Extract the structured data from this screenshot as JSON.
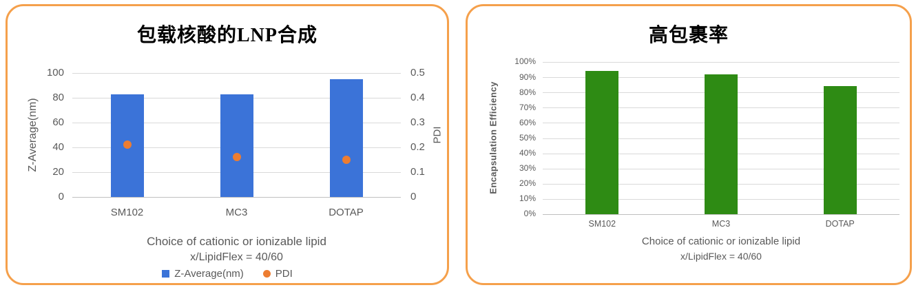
{
  "colors": {
    "panel_border": "#F5A04B",
    "bar_blue": "#3B73D8",
    "marker_orange": "#ED7D31",
    "bar_green": "#2E8B14",
    "gridline": "#D9D9D9",
    "axis_text": "#595959"
  },
  "left_chart": {
    "title": "包载核酸的LNP合成",
    "y_left_title": "Z-Average(nm)",
    "y_right_title": "PDI",
    "xlabel_line1": "Choice of cationic or ionizable lipid",
    "xlabel_line2": "x/LipidFlex = 40/60",
    "legend": [
      {
        "label": "Z-Average(nm)",
        "marker": "square",
        "color": "#3B73D8"
      },
      {
        "label": "PDI",
        "marker": "circle",
        "color": "#ED7D31"
      }
    ]
  },
  "right_chart": {
    "title": "高包裹率",
    "y_title": "Encapsulation Efficiency",
    "xlabel_line1": "Choice of cationic or ionizable lipid",
    "xlabel_line2": "x/LipidFlex = 40/60"
  },
  "chart_data": [
    {
      "type": "bar",
      "title": "包载核酸的LNP合成",
      "categories": [
        "SM102",
        "MC3",
        "DOTAP"
      ],
      "series": [
        {
          "name": "Z-Average(nm)",
          "plot": "bar",
          "axis": "left",
          "color": "#3B73D8",
          "values": [
            83,
            83,
            95
          ]
        },
        {
          "name": "PDI",
          "plot": "scatter",
          "axis": "right",
          "color": "#ED7D31",
          "values": [
            0.21,
            0.16,
            0.15
          ]
        }
      ],
      "xlabel": "Choice of cationic or ionizable lipid x/LipidFlex = 40/60",
      "ylabel_left": "Z-Average(nm)",
      "ylim_left": [
        0,
        100
      ],
      "yticks_left": [
        0,
        20,
        40,
        60,
        80,
        100
      ],
      "ylabel_right": "PDI",
      "ylim_right": [
        0,
        0.5
      ],
      "yticks_right": [
        0,
        0.1,
        0.2,
        0.3,
        0.4,
        0.5
      ],
      "grid": true,
      "legend_position": "bottom"
    },
    {
      "type": "bar",
      "title": "高包裹率",
      "categories": [
        "SM102",
        "MC3",
        "DOTAP"
      ],
      "series": [
        {
          "name": "Encapsulation Efficiency",
          "plot": "bar",
          "axis": "left",
          "color": "#2E8B14",
          "values": [
            94,
            92,
            84
          ]
        }
      ],
      "value_unit": "%",
      "xlabel": "Choice of cationic or ionizable lipid x/LipidFlex = 40/60",
      "ylabel": "Encapsulation Efficiency",
      "ylim": [
        0,
        100
      ],
      "yticks": [
        0,
        10,
        20,
        30,
        40,
        50,
        60,
        70,
        80,
        90,
        100
      ],
      "grid": true,
      "legend_position": "none"
    }
  ]
}
